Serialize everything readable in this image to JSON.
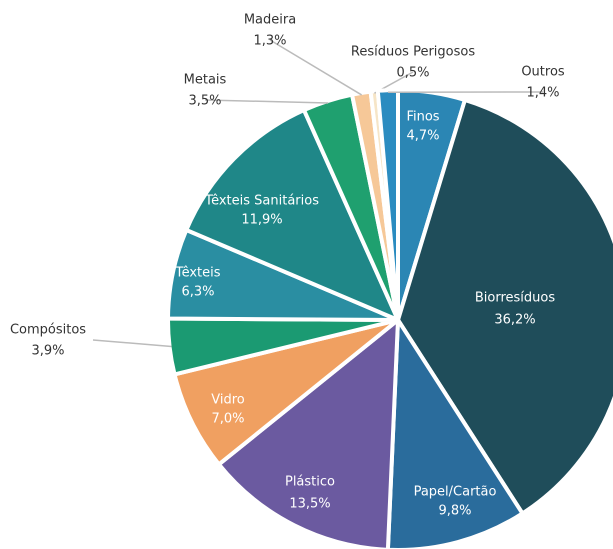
{
  "chart_data": {
    "type": "pie",
    "categories": [
      "Finos",
      "Biorresíduos",
      "Papel/Cartão",
      "Plástico",
      "Vidro",
      "Compósitos",
      "Têxteis",
      "Têxteis Sanitários",
      "Metais",
      "Madeira",
      "Resíduos Perigosos",
      "Outros"
    ],
    "values": [
      4.7,
      36.2,
      9.8,
      13.5,
      7.0,
      3.9,
      6.3,
      11.9,
      3.5,
      1.3,
      0.5,
      1.4
    ],
    "value_labels": [
      "4,7%",
      "36,2%",
      "9,8%",
      "13,5%",
      "7,0%",
      "3,9%",
      "6,3%",
      "11,9%",
      "3,5%",
      "1,3%",
      "0,5%",
      "1,4%"
    ],
    "colors": [
      "#2b86b4",
      "#1f4d5a",
      "#2a6c9c",
      "#6b5aa0",
      "#f0a061",
      "#1b9a72",
      "#2a8ea2",
      "#1f8788",
      "#1fa06f",
      "#f6c898",
      "#f6e5c7",
      "#2b8cc0"
    ]
  }
}
